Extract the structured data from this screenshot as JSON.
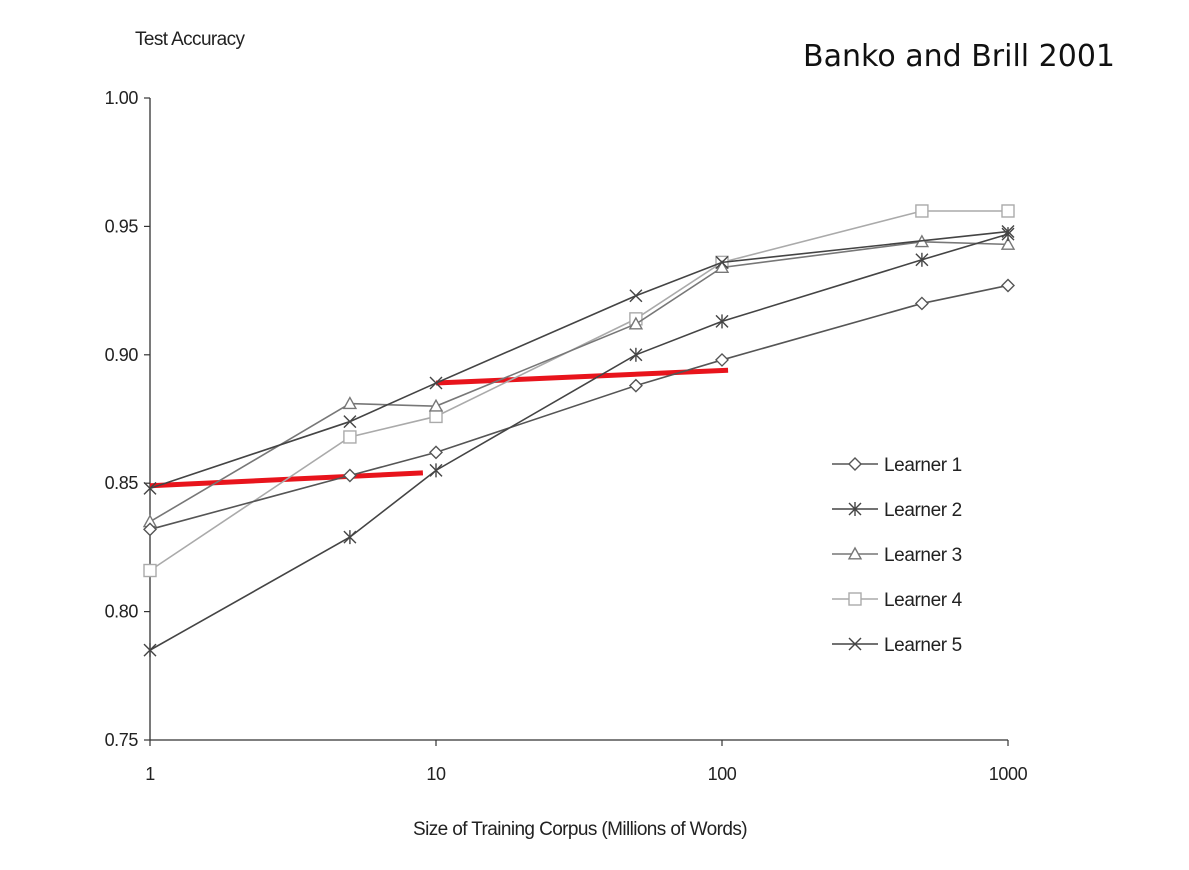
{
  "chart_data": {
    "type": "line",
    "title": "Banko and Brill 2001",
    "xlabel": "Size of Training Corpus (Millions of Words)",
    "ylabel": "Test Accuracy",
    "x_scale": "log",
    "xlim": [
      1,
      1000
    ],
    "ylim": [
      0.75,
      1.0
    ],
    "x_ticks": [
      1,
      10,
      100,
      1000
    ],
    "x_tick_labels": [
      "1",
      "10",
      "100",
      "1000"
    ],
    "y_ticks": [
      0.75,
      0.8,
      0.85,
      0.9,
      0.95,
      1.0
    ],
    "y_tick_labels": [
      "0.75",
      "0.80",
      "0.85",
      "0.90",
      "0.95",
      "1.00"
    ],
    "grid": false,
    "legend_position": "right",
    "x": [
      1,
      5,
      10,
      50,
      100,
      500,
      1000
    ],
    "series": [
      {
        "name": "Learner 1",
        "marker": "diamond",
        "color": "#555555",
        "values": [
          0.832,
          0.853,
          0.862,
          0.888,
          0.898,
          0.92,
          0.927
        ]
      },
      {
        "name": "Learner 2",
        "marker": "asterisk",
        "color": "#444444",
        "values": [
          0.785,
          0.829,
          0.855,
          0.9,
          0.913,
          0.937,
          0.947
        ]
      },
      {
        "name": "Learner 3",
        "marker": "triangle",
        "color": "#777777",
        "values": [
          0.835,
          0.881,
          0.88,
          0.912,
          0.934,
          0.944,
          0.943
        ]
      },
      {
        "name": "Learner 4",
        "marker": "square",
        "color": "#aaaaaa",
        "values": [
          0.816,
          0.868,
          0.876,
          0.914,
          0.936,
          0.956,
          0.956
        ]
      },
      {
        "name": "Learner 5",
        "marker": "x",
        "color": "#444444",
        "values": [
          0.848,
          0.874,
          0.889,
          0.923,
          0.936,
          null,
          0.948
        ]
      }
    ],
    "annotations": [
      {
        "type": "segment",
        "color": "#e8141c",
        "x": [
          1,
          9
        ],
        "y": [
          0.849,
          0.854
        ]
      },
      {
        "type": "segment",
        "color": "#e8141c",
        "x": [
          10,
          105
        ],
        "y": [
          0.889,
          0.894
        ]
      }
    ]
  }
}
